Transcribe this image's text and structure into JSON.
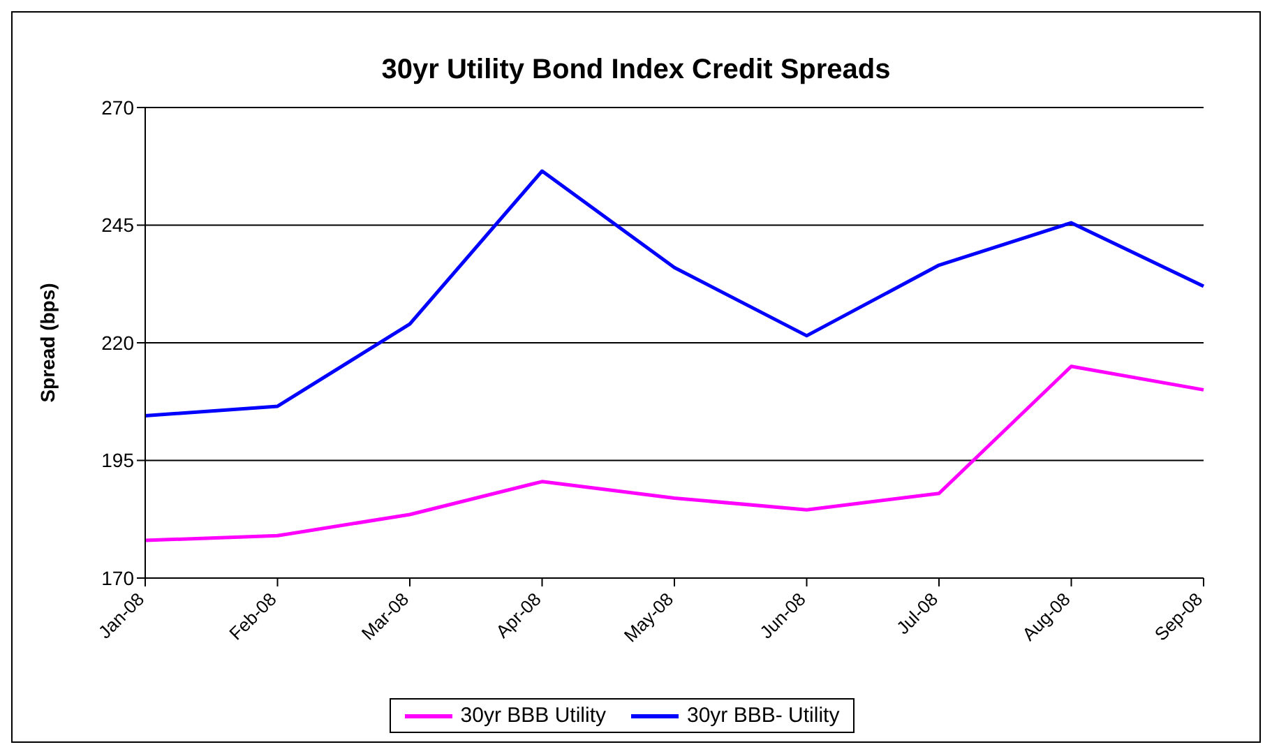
{
  "chart_data": {
    "type": "line",
    "title": "30yr Utility Bond Index Credit Spreads",
    "ylabel": "Spread (bps)",
    "categories": [
      "Jan-08",
      "Feb-08",
      "Mar-08",
      "Apr-08",
      "May-08",
      "Jun-08",
      "Jul-08",
      "Aug-08",
      "Sep-08"
    ],
    "series": [
      {
        "name": "30yr BBB Utility",
        "color": "#ff00ff",
        "values": [
          178,
          179,
          183.5,
          190.5,
          187,
          184.5,
          188,
          215,
          210
        ]
      },
      {
        "name": "30yr BBB- Utility",
        "color": "#0000ff",
        "values": [
          204.5,
          206.5,
          224,
          256.5,
          236,
          221.5,
          236.5,
          245.5,
          232
        ]
      }
    ],
    "ylim": [
      170,
      270
    ],
    "yticks": [
      170,
      195,
      220,
      245,
      270
    ],
    "grid": "y",
    "legend": "bottom",
    "marker": "none",
    "line_style": "solid"
  }
}
